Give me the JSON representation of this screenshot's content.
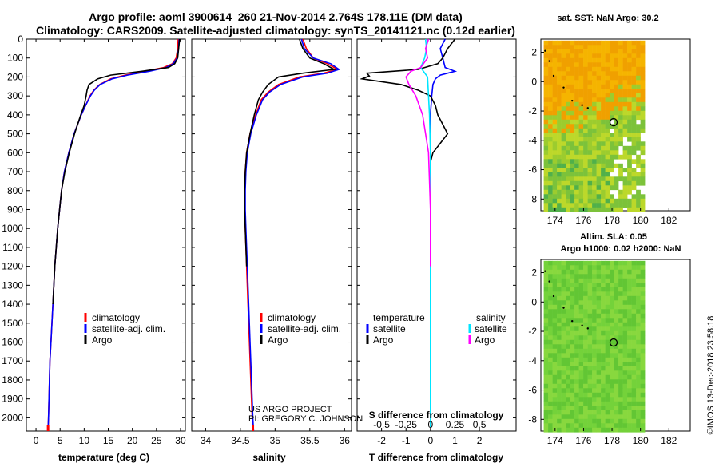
{
  "header": {
    "line1": "Argo profile: aoml 3900614_260 21-Nov-2014 2.764S 178.11E (DM data)",
    "line2": "Climatology: CARS2009. Satellite-adjusted climatology: synTS_20141121.nc (0.12d earlier)"
  },
  "colors": {
    "climatology": "#ff0000",
    "satellite": "#0000ff",
    "argo": "#000000",
    "sal_satellite": "#00e5ff",
    "sal_argo": "#ff00ff"
  },
  "depth_ticks": [
    "0",
    "100",
    "200",
    "300",
    "400",
    "500",
    "600",
    "700",
    "800",
    "900",
    "1000",
    "1100",
    "1200",
    "1300",
    "1400",
    "1500",
    "1600",
    "1700",
    "1800",
    "1900",
    "2000"
  ],
  "chart_data": [
    {
      "type": "line",
      "xlabel": "temperature (deg C)",
      "ylabel": "",
      "xlim": [
        -2,
        31
      ],
      "ylim": [
        2070,
        0
      ],
      "x_ticks": [
        "0",
        "5",
        "10",
        "15",
        "20",
        "25",
        "30"
      ],
      "legend": [
        "climatology",
        "satellite-adj. clim.",
        "Argo"
      ],
      "series": [
        {
          "name": "climatology",
          "depth": [
            0,
            50,
            100,
            130,
            150,
            170,
            190,
            210,
            240,
            270,
            300,
            350,
            400,
            500,
            600,
            700,
            800,
            900,
            1000,
            1100,
            1200,
            1300,
            1400,
            1500,
            1600,
            1700,
            1800,
            1900,
            2000,
            2070
          ],
          "values": [
            29.5,
            29.4,
            29.1,
            28.3,
            26.5,
            22.5,
            18.5,
            15.5,
            13.2,
            12.0,
            11.2,
            10.3,
            9.4,
            7.9,
            6.8,
            5.9,
            5.3,
            4.9,
            4.5,
            4.2,
            3.9,
            3.7,
            3.5,
            3.3,
            3.1,
            2.9,
            2.8,
            2.7,
            2.6,
            2.5
          ]
        },
        {
          "name": "satellite-adj. clim.",
          "depth": [
            0,
            50,
            100,
            130,
            150,
            170,
            190,
            210,
            240,
            270,
            300,
            350,
            400,
            500,
            600,
            700,
            800,
            900,
            1000,
            1100,
            1200,
            1300,
            1400,
            1500,
            1600,
            1700,
            1800,
            1900,
            2000,
            2070
          ],
          "values": [
            29.7,
            29.6,
            29.3,
            28.5,
            27.0,
            23.5,
            19.0,
            15.8,
            13.3,
            12.1,
            11.3,
            10.3,
            9.4,
            7.9,
            6.8,
            5.9,
            5.3,
            4.9,
            4.5,
            4.2,
            3.9,
            3.7,
            3.5,
            3.3,
            3.1,
            2.9,
            2.8,
            2.7,
            2.6,
            2.5
          ]
        },
        {
          "name": "Argo",
          "depth": [
            0,
            50,
            100,
            130,
            150,
            170,
            190,
            210,
            240,
            270,
            300,
            350,
            400,
            500,
            600,
            700,
            800,
            900,
            1000,
            1100,
            1200,
            1300,
            1400
          ],
          "values": [
            29.8,
            29.6,
            29.4,
            28.8,
            27.5,
            22.0,
            15.5,
            12.8,
            11.0,
            10.6,
            10.4,
            10.0,
            9.3,
            8.0,
            6.9,
            6.0,
            5.3,
            4.9,
            4.5,
            4.2,
            3.9,
            3.7,
            3.5
          ]
        }
      ]
    },
    {
      "type": "line",
      "xlabel": "salinity",
      "ylabel": "",
      "xlim": [
        33.8,
        36.1
      ],
      "ylim": [
        2070,
        0
      ],
      "x_ticks": [
        "34",
        "34.5",
        "35",
        "35.5",
        "36"
      ],
      "legend": [
        "climatology",
        "satellite-adj. clim.",
        "Argo"
      ],
      "series": [
        {
          "name": "climatology",
          "depth": [
            0,
            50,
            100,
            130,
            160,
            180,
            200,
            240,
            280,
            320,
            400,
            500,
            600,
            700,
            800,
            900,
            1000,
            1200,
            1400,
            1600,
            1800,
            2000,
            2070
          ],
          "values": [
            35.4,
            35.45,
            35.55,
            35.75,
            35.9,
            35.7,
            35.35,
            35.05,
            34.9,
            34.8,
            34.72,
            34.64,
            34.59,
            34.57,
            34.56,
            34.56,
            34.57,
            34.59,
            34.61,
            34.63,
            34.65,
            34.67,
            34.68
          ]
        },
        {
          "name": "satellite-adj. clim.",
          "depth": [
            0,
            50,
            100,
            130,
            160,
            180,
            200,
            240,
            280,
            320,
            400,
            500,
            600,
            700,
            800,
            900,
            1000,
            1200,
            1400,
            1600,
            1800,
            2000,
            2070
          ],
          "values": [
            35.38,
            35.42,
            35.55,
            35.8,
            35.92,
            35.75,
            35.4,
            35.08,
            34.92,
            34.82,
            34.73,
            34.65,
            34.6,
            34.58,
            34.57,
            34.57,
            34.58,
            34.6,
            34.62,
            34.64,
            34.66,
            34.68,
            34.69
          ]
        },
        {
          "name": "Argo",
          "depth": [
            0,
            50,
            100,
            130,
            160,
            180,
            200,
            240,
            280,
            320,
            400,
            500,
            600,
            700,
            800,
            900,
            1000,
            1200
          ],
          "values": [
            35.35,
            35.4,
            35.5,
            35.7,
            35.85,
            35.4,
            35.05,
            34.9,
            34.82,
            34.76,
            34.7,
            34.64,
            34.59,
            34.57,
            34.56,
            34.56,
            34.57,
            34.59
          ]
        }
      ]
    },
    {
      "type": "line",
      "xlabel": "T difference from climatology",
      "x2label": "S difference from climatology",
      "ylabel": "",
      "xlim": [
        -3,
        3.5
      ],
      "ylim": [
        2070,
        0
      ],
      "x_ticks": [
        "-2",
        "-1",
        "0",
        "1",
        "2"
      ],
      "x2_ticks": [
        "-0.5",
        "-0.25",
        "0",
        "0.25",
        "0.5"
      ],
      "legend_temperature_title": "temperature",
      "legend_salinity_title": "salinity",
      "legend_labels": [
        "satellite",
        "Argo",
        "satellite",
        "Argo"
      ],
      "series": [
        {
          "name": "satellite",
          "variable": "temperature",
          "depth": [
            0,
            50,
            100,
            150,
            170,
            190,
            210,
            240,
            300,
            400,
            500,
            700,
            900,
            1100,
            1280
          ],
          "values": [
            0.6,
            0.4,
            0.5,
            0.6,
            1.0,
            0.4,
            0.2,
            0.1,
            0.05,
            0.0,
            0.0,
            0.0,
            0.0,
            0.0,
            0.0
          ]
        },
        {
          "name": "Argo",
          "variable": "temperature",
          "depth": [
            0,
            50,
            100,
            130,
            160,
            180,
            195,
            210,
            240,
            270,
            300,
            350,
            400,
            450,
            500,
            550,
            600,
            650,
            700,
            800,
            900,
            1000,
            1100,
            1280
          ],
          "values": [
            1.0,
            0.7,
            0.5,
            0.3,
            -0.5,
            -2.6,
            -2.5,
            -2.8,
            -1.2,
            -0.5,
            0.0,
            0.2,
            0.3,
            0.5,
            0.7,
            0.4,
            0.1,
            0.0,
            0.0,
            0.0,
            0.0,
            0.0,
            0.0,
            0.0
          ]
        },
        {
          "name": "satellite",
          "variable": "salinity",
          "depth": [
            0,
            50,
            100,
            150,
            200,
            300,
            400,
            600,
            900,
            1200,
            2050
          ],
          "values": [
            -0.05,
            -0.04,
            -0.06,
            -0.1,
            -0.03,
            -0.02,
            -0.01,
            0.0,
            0.0,
            0.0,
            0.0
          ]
        },
        {
          "name": "Argo",
          "variable": "salinity",
          "depth": [
            0,
            50,
            100,
            150,
            170,
            200,
            240,
            300,
            400,
            600,
            900,
            1200
          ],
          "values": [
            -0.02,
            -0.05,
            -0.03,
            -0.1,
            -0.2,
            -0.25,
            -0.22,
            -0.15,
            -0.08,
            -0.02,
            0.0,
            0.0
          ]
        }
      ]
    }
  ],
  "credits": {
    "line1": "US ARGO PROJECT",
    "line2": "PI: GREGORY C. JOHNSON"
  },
  "maps": {
    "sst_title": "sat. SST: NaN Argo: 30.2",
    "sla_title1": "Altim. SLA: 0.05",
    "sla_title2": "Argo h1000: 0.02 h2000: NaN",
    "lon_ticks": [
      "174",
      "176",
      "178",
      "180",
      "182"
    ],
    "lat_ticks": [
      "2",
      "0",
      "-2",
      "-4",
      "-6",
      "-8"
    ],
    "float_lon": 178.11,
    "float_lat": -2.764,
    "xlim": [
      173,
      183.5
    ],
    "ylim": [
      -8.8,
      2.9
    ]
  },
  "footer": "©IMOS 13-Dec-2018 23:58:18"
}
